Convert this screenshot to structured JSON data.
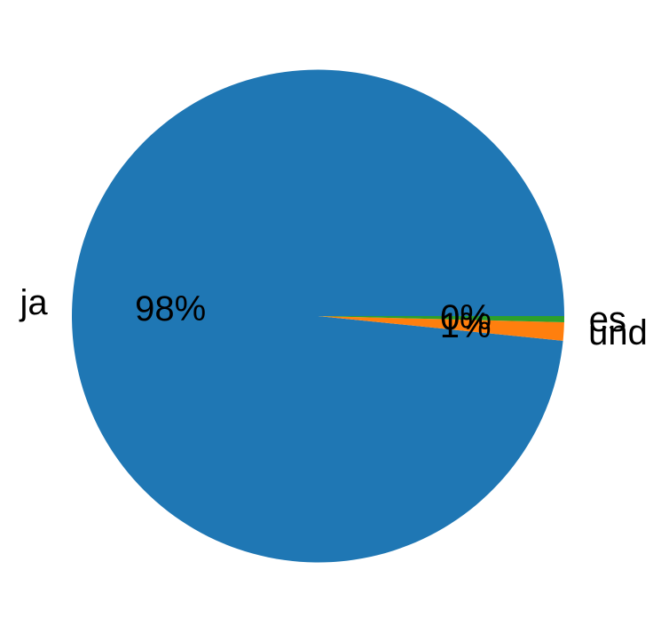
{
  "chart_data": {
    "type": "pie",
    "title": "",
    "labels": [
      "ja",
      "und",
      "es"
    ],
    "values": [
      98.4,
      1.2,
      0.4
    ],
    "unit": "percent",
    "pct_labels": [
      "98%",
      "1%",
      "0%"
    ],
    "colors": [
      "#1f77b4",
      "#ff7f0e",
      "#2ca02c"
    ],
    "startangle": 0,
    "counterclock": true,
    "labeldistance": 1.1,
    "pctdistance": 0.6,
    "legend": "none",
    "grid": "off",
    "text_color": "#000000",
    "background_color": "#ffffff"
  }
}
